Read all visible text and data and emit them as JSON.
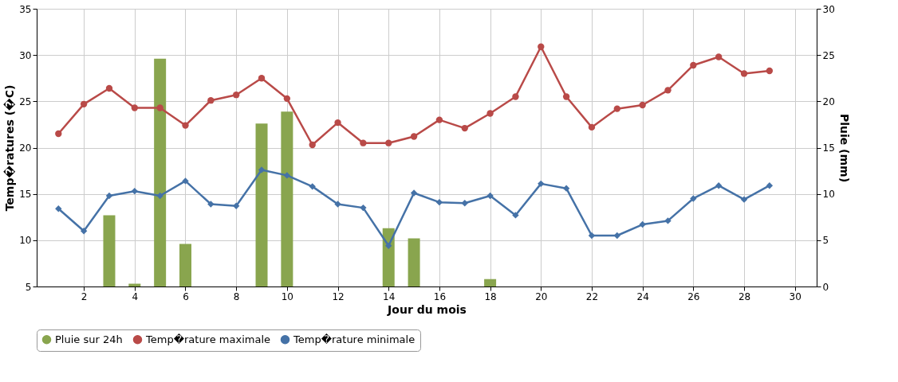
{
  "chart_data": {
    "type": "line",
    "xlabel": "Jour du mois",
    "ylabel": "Temp�ratures (�C)",
    "y2label": "Pluie (mm)",
    "x": [
      1,
      2,
      3,
      4,
      5,
      6,
      7,
      8,
      9,
      10,
      11,
      12,
      13,
      14,
      15,
      16,
      17,
      18,
      19,
      20,
      21,
      22,
      23,
      24,
      25,
      26,
      27,
      28,
      29
    ],
    "xlim": [
      0.3,
      30.7
    ],
    "xticks": [
      2,
      4,
      6,
      8,
      10,
      12,
      14,
      16,
      18,
      20,
      22,
      24,
      26,
      28,
      30
    ],
    "ylim": [
      5,
      35
    ],
    "yticks": [
      5,
      10,
      15,
      20,
      25,
      30,
      35
    ],
    "y2lim": [
      0,
      30
    ],
    "y2ticks": [
      0,
      5,
      10,
      15,
      20,
      25,
      30
    ],
    "grid": true,
    "legend": "bottom",
    "series": [
      {
        "name": "Pluie sur 24h",
        "type": "bar",
        "axis": "y2",
        "color": "#89a54e",
        "x": [
          3,
          4,
          5,
          6,
          9,
          10,
          14,
          15,
          18
        ],
        "values": [
          7.7,
          0.3,
          24.6,
          4.6,
          17.6,
          18.9,
          6.3,
          5.2,
          0.8
        ]
      },
      {
        "name": "Temp�rature maximale",
        "color": "#b94a48",
        "marker": "circle",
        "values": [
          21.5,
          24.7,
          26.4,
          24.3,
          24.3,
          22.4,
          25.1,
          25.7,
          27.5,
          25.3,
          20.3,
          22.7,
          20.5,
          20.5,
          21.2,
          23.0,
          22.1,
          23.7,
          25.5,
          30.9,
          25.5,
          22.2,
          24.2,
          24.6,
          26.2,
          28.9,
          29.8,
          28.0,
          28.3
        ]
      },
      {
        "name": "Temp�rature minimale",
        "color": "#4572a7",
        "marker": "diamond",
        "values": [
          13.4,
          11.0,
          14.8,
          15.3,
          14.8,
          16.4,
          13.9,
          13.7,
          17.6,
          17.0,
          15.8,
          13.9,
          13.5,
          9.4,
          15.1,
          14.1,
          14.0,
          14.8,
          12.7,
          16.1,
          15.6,
          10.5,
          10.5,
          11.7,
          12.1,
          14.5,
          15.9,
          14.4,
          15.9
        ]
      }
    ]
  }
}
